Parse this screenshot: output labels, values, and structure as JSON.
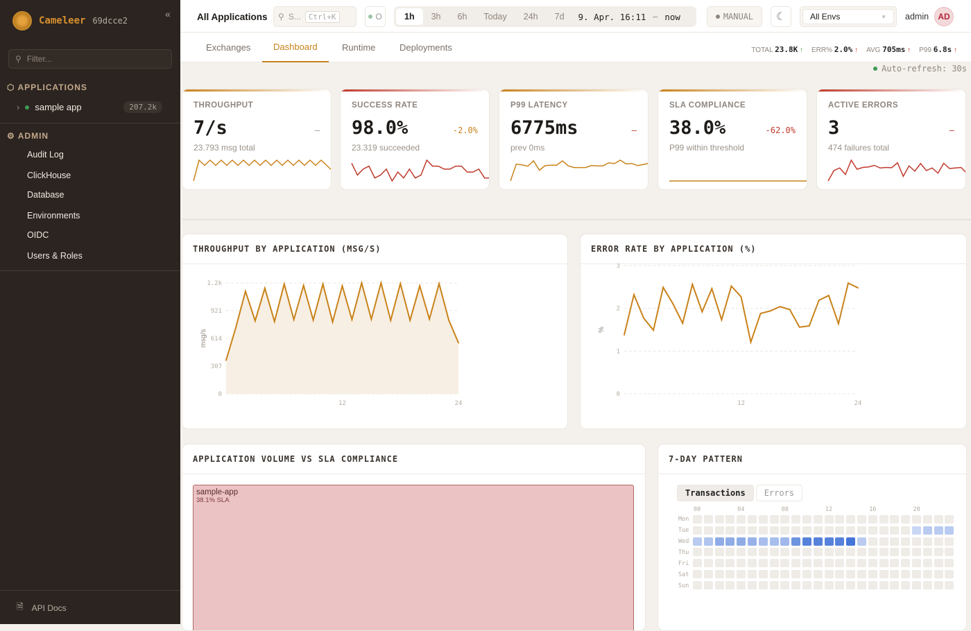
{
  "sidebar": {
    "brand": "Cameleer",
    "version": "69dcce2",
    "filter_placeholder": "Filter...",
    "applications_label": "APPLICATIONS",
    "apps": [
      {
        "name": "sample app",
        "count": "207.2k",
        "status_color": "#3e9a55"
      }
    ],
    "admin_label": "ADMIN",
    "admin_items": [
      "Audit Log",
      "ClickHouse",
      "Database",
      "Environments",
      "OIDC",
      "Users & Roles"
    ],
    "api_docs": "API Docs"
  },
  "header": {
    "title": "All Applications",
    "search": "S...",
    "search_shortcut": "Ctrl+K",
    "status": "O",
    "ranges": [
      "1h",
      "3h",
      "6h",
      "Today",
      "24h",
      "7d"
    ],
    "active_range": "1h",
    "range_from": "9. Apr. 16:11",
    "range_sep": "–",
    "range_to": "now",
    "refresh_mode": "MANUAL",
    "env": "All Envs",
    "user": "admin",
    "avatar": "AD"
  },
  "tabs": [
    "Exchanges",
    "Dashboard",
    "Runtime",
    "Deployments"
  ],
  "active_tab": "Dashboard",
  "kpi_strip": [
    {
      "label": "TOTAL",
      "value": "23.8K",
      "trend": "up",
      "color": "#3e9a55"
    },
    {
      "label": "ERR%",
      "value": "2.0%",
      "trend": "up",
      "color": "#c0392b"
    },
    {
      "label": "AVG",
      "value": "705ms",
      "trend": "up",
      "color": "#c0392b"
    },
    {
      "label": "P99",
      "value": "6.8s",
      "trend": "up",
      "color": "#c0392b"
    }
  ],
  "auto_refresh": "Auto-refresh: 30s",
  "kpis": [
    {
      "label": "THROUGHPUT",
      "value": "7/s",
      "delta": "–",
      "sub": "23.793 msg total",
      "color": "#c9821a",
      "delta_color": "#999",
      "spark": [
        2,
        6,
        5,
        6,
        5,
        6,
        5,
        6,
        5,
        6,
        5,
        6,
        5,
        6,
        5,
        6,
        5,
        6,
        5,
        6,
        5,
        6,
        5,
        6,
        5,
        4
      ]
    },
    {
      "label": "SUCCESS RATE",
      "value": "98.0%",
      "delta": "-2.0%",
      "sub": "23.319 succeeded",
      "color": "#c0392b",
      "delta_color": "#c9821a",
      "spark": [
        6,
        2,
        4,
        5,
        1,
        2,
        4,
        0,
        3,
        1,
        4,
        1,
        2,
        7,
        5,
        5,
        4,
        4,
        5,
        5,
        3,
        3,
        4,
        1,
        1
      ]
    },
    {
      "label": "P99 LATENCY",
      "value": "6775ms",
      "delta": "–",
      "sub": "prev 0ms",
      "color": "#c9821a",
      "delta_color": "#c0392b",
      "spark": [
        0,
        5,
        4.8,
        4.4,
        6,
        3.2,
        4.6,
        4.7,
        4.7,
        6,
        4.5,
        4,
        4,
        4,
        4.6,
        4.5,
        4.5,
        5.4,
        5.2,
        6.2,
        5.1,
        5.2,
        4.6,
        4.9,
        5.3
      ]
    },
    {
      "label": "SLA COMPLIANCE",
      "value": "38.0%",
      "delta": "-62.0%",
      "sub": "P99 within threshold",
      "color": "#c9821a",
      "delta_color": "#c0392b",
      "spark": [
        0,
        0
      ]
    },
    {
      "label": "ACTIVE ERRORS",
      "value": "3",
      "delta": "–",
      "sub": "474 failures total",
      "color": "#c0392b",
      "delta_color": "#c0392b",
      "spark": [
        0,
        4,
        5,
        2.5,
        8,
        4.5,
        5.2,
        5.4,
        6,
        5,
        5.2,
        5.1,
        7,
        1.8,
        5.8,
        3.8,
        6.7,
        4,
        5,
        3,
        6.8,
        4.8,
        5,
        5.2,
        3
      ]
    }
  ],
  "chart_data": [
    {
      "type": "area",
      "title": "THROUGHPUT BY APPLICATION (MSG/S)",
      "xlabel": "",
      "ylabel": "msg/s",
      "xlim": [
        0,
        24
      ],
      "ylim": [
        0,
        1228
      ],
      "grid": true,
      "x_ticks": [
        "12",
        "24"
      ],
      "y_ticks": [
        "0",
        "307",
        "614",
        "921",
        "1.2k"
      ],
      "x": [
        0,
        1,
        2,
        3,
        4,
        5,
        6,
        7,
        8,
        9,
        10,
        11,
        12,
        13,
        14,
        15,
        16,
        17,
        18,
        19,
        20,
        21,
        22,
        23,
        24
      ],
      "values": [
        372,
        732,
        1135,
        809,
        1169,
        801,
        1215,
        822,
        1200,
        817,
        1215,
        796,
        1195,
        822,
        1228,
        827,
        1228,
        814,
        1220,
        814,
        1195,
        827,
        1220,
        817,
        565
      ],
      "color": "#c9821a"
    },
    {
      "type": "line",
      "title": "ERROR RATE BY APPLICATION (%)",
      "xlabel": "",
      "ylabel": "%",
      "xlim": [
        0,
        24
      ],
      "ylim": [
        0,
        3
      ],
      "grid": true,
      "x_ticks": [
        "12",
        "24"
      ],
      "y_ticks": [
        "0",
        "1",
        "2",
        "3"
      ],
      "x": [
        0,
        1,
        2,
        3,
        4,
        5,
        6,
        7,
        8,
        9,
        10,
        11,
        12,
        13,
        14,
        15,
        16,
        17,
        18,
        19,
        20,
        21,
        22,
        23,
        24
      ],
      "values": [
        1.38,
        2.32,
        1.77,
        1.49,
        2.49,
        2.11,
        1.65,
        2.56,
        1.92,
        2.46,
        1.73,
        2.52,
        2.27,
        1.21,
        1.88,
        1.94,
        2.04,
        1.97,
        1.56,
        1.59,
        2.19,
        2.3,
        1.64,
        2.59,
        2.48
      ],
      "color": "#c9821a"
    },
    {
      "type": "treemap",
      "title": "APPLICATION VOLUME VS SLA COMPLIANCE",
      "items": [
        {
          "name": "sample-app",
          "label": "38.1% SLA",
          "sla": 38.1
        }
      ]
    },
    {
      "type": "heatmap",
      "title": "7-DAY PATTERN",
      "tabs": [
        "Transactions",
        "Errors"
      ],
      "active_tab": "Transactions",
      "rows": [
        "Mon",
        "Tue",
        "Wed",
        "Thu",
        "Fri",
        "Sat",
        "Sun"
      ],
      "x_ticks": [
        "00",
        "04",
        "08",
        "12",
        "16",
        "20"
      ],
      "values": [
        [
          0,
          0,
          0,
          0,
          0,
          0,
          0,
          0,
          0,
          0,
          0,
          0,
          0,
          0,
          0,
          0,
          0,
          0,
          0,
          0,
          0,
          0,
          0,
          0
        ],
        [
          0,
          0,
          0,
          0,
          0,
          0,
          0,
          0,
          0,
          0,
          0,
          0,
          0,
          0,
          0,
          0,
          0,
          0,
          0,
          0,
          0.15,
          0.25,
          0.25,
          0.25
        ],
        [
          0.25,
          0.3,
          0.5,
          0.5,
          0.5,
          0.45,
          0.35,
          0.35,
          0.4,
          0.7,
          0.85,
          0.85,
          0.85,
          0.85,
          0.95,
          0.25,
          0,
          0,
          0,
          0,
          0,
          0,
          0,
          0
        ],
        [
          0,
          0,
          0,
          0,
          0,
          0,
          0,
          0,
          0,
          0,
          0,
          0,
          0,
          0,
          0,
          0,
          0,
          0,
          0,
          0,
          0,
          0,
          0,
          0
        ],
        [
          0,
          0,
          0,
          0,
          0,
          0,
          0,
          0,
          0,
          0,
          0,
          0,
          0,
          0,
          0,
          0,
          0,
          0,
          0,
          0,
          0,
          0,
          0,
          0
        ],
        [
          0,
          0,
          0,
          0,
          0,
          0,
          0,
          0,
          0,
          0,
          0,
          0,
          0,
          0,
          0,
          0,
          0,
          0,
          0,
          0,
          0,
          0,
          0,
          0
        ],
        [
          0,
          0,
          0,
          0,
          0,
          0,
          0,
          0,
          0,
          0,
          0,
          0,
          0,
          0,
          0,
          0,
          0,
          0,
          0,
          0,
          0,
          0,
          0,
          0
        ]
      ],
      "color": "#3d6fd6"
    }
  ]
}
